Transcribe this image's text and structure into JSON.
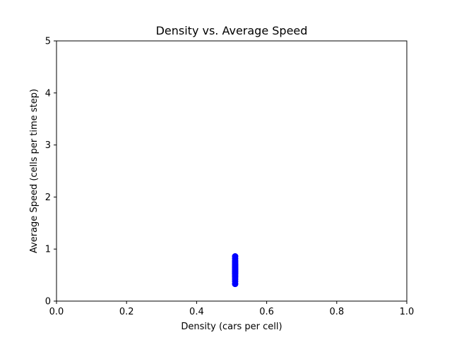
{
  "chart_data": {
    "type": "scatter",
    "title": "Density vs. Average Speed",
    "xlabel": "Density (cars per cell)",
    "ylabel": "Average Speed (cells per time step)",
    "xlim": [
      0.0,
      1.0
    ],
    "ylim": [
      0,
      5
    ],
    "x_ticks": [
      "0.0",
      "0.2",
      "0.4",
      "0.6",
      "0.8",
      "1.0"
    ],
    "y_ticks": [
      "0",
      "1",
      "2",
      "3",
      "4",
      "5"
    ],
    "grid": false,
    "legend": "none",
    "series": [
      {
        "color": "#0000ff",
        "marker": "circle",
        "x": [
          0.51,
          0.51,
          0.51,
          0.51,
          0.51,
          0.51,
          0.51,
          0.51,
          0.51,
          0.51,
          0.51,
          0.51,
          0.51,
          0.51,
          0.51,
          0.51,
          0.51,
          0.51,
          0.51,
          0.51
        ],
        "y": [
          0.33,
          0.38,
          0.42,
          0.46,
          0.49,
          0.52,
          0.54,
          0.56,
          0.58,
          0.6,
          0.62,
          0.64,
          0.66,
          0.68,
          0.7,
          0.72,
          0.75,
          0.78,
          0.82,
          0.86
        ]
      }
    ]
  }
}
